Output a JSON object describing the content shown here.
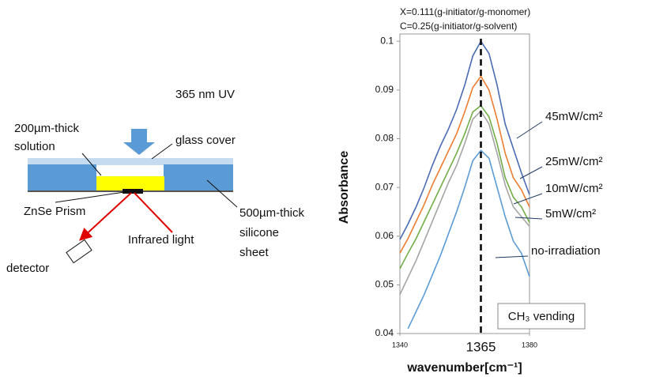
{
  "diagram": {
    "labels": [
      "365 nm UV",
      "200µm-thick",
      "solution",
      "glass cover",
      "ZnSe Prism",
      "Infrared light",
      "500µm-thick",
      "silicone",
      "sheet",
      "detector"
    ]
  },
  "chart_data": {
    "type": "line",
    "annotations": [
      "X=0.111(g-initiator/g-monomer)",
      "C=0.25(g-initiator/g-solvent)",
      "CH₃ vending"
    ],
    "x_label": "wavenumber[cm⁻¹]",
    "y_label": "Absorbance",
    "x": [
      1340,
      1342.5,
      1345,
      1347.5,
      1350,
      1352.5,
      1355,
      1357.5,
      1360,
      1362.5,
      1365,
      1367.5,
      1370,
      1372.5,
      1375,
      1377.5,
      1380
    ],
    "series": [
      {
        "name": "45mW/cm²",
        "color": "#4a6cb3",
        "values": [
          0.0593,
          0.0625,
          0.066,
          0.07,
          0.0745,
          0.0785,
          0.082,
          0.086,
          0.091,
          0.097,
          0.1,
          0.0975,
          0.091,
          0.083,
          0.078,
          0.073,
          0.0685
        ]
      },
      {
        "name": "25mW/cm²",
        "color": "#ed7d31",
        "values": [
          0.0565,
          0.0595,
          0.063,
          0.0665,
          0.0705,
          0.074,
          0.0775,
          0.081,
          0.0855,
          0.0905,
          0.0928,
          0.09,
          0.084,
          0.077,
          0.072,
          0.0695,
          0.066
        ]
      },
      {
        "name": "10mW/cm²",
        "color": "#70ad47",
        "values": [
          0.0533,
          0.0565,
          0.0595,
          0.063,
          0.0665,
          0.07,
          0.0735,
          0.077,
          0.081,
          0.0855,
          0.0868,
          0.0845,
          0.079,
          0.072,
          0.068,
          0.066,
          0.0628
        ]
      },
      {
        "name": "5mW/cm²",
        "color": "#a5a5a5",
        "values": [
          0.048,
          0.0515,
          0.055,
          0.059,
          0.063,
          0.067,
          0.071,
          0.0745,
          0.079,
          0.084,
          0.0857,
          0.083,
          0.077,
          0.0705,
          0.066,
          0.064,
          0.062
        ]
      },
      {
        "name": "no-irradiation",
        "color": "#5b9bd5",
        "values": [
          null,
          0.041,
          0.0445,
          0.048,
          0.052,
          0.056,
          0.0605,
          0.065,
          0.07,
          0.0755,
          0.0776,
          0.076,
          0.07,
          0.064,
          0.059,
          0.0565,
          0.0517
        ]
      }
    ],
    "xlim": [
      1340,
      1380
    ],
    "xticks": [
      1340,
      1380
    ],
    "marker_line": 1365,
    "ylim": [
      0.04,
      0.1015
    ],
    "yticks": [
      0.04,
      0.05,
      0.06,
      0.07,
      0.08,
      0.09,
      0.1
    ]
  }
}
